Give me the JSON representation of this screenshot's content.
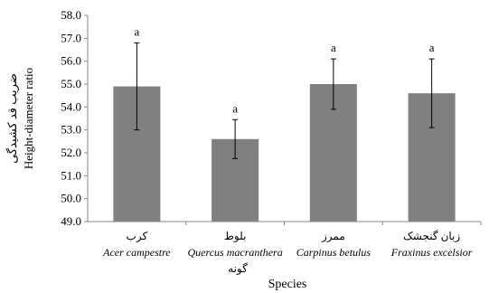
{
  "chart_data": {
    "type": "bar",
    "xlabel": "Species",
    "extra_label": "گونه",
    "ylabel_fa": "ضریب قد کشیدگی",
    "ylabel_en": "Height-diameter  ratio",
    "ylim": [
      49.0,
      58.0
    ],
    "y_ticks": [
      "49.0",
      "50.0",
      "51.0",
      "52.0",
      "53.0",
      "54.0",
      "55.0",
      "56.0",
      "57.0",
      "58.0"
    ],
    "categories": [
      {
        "fa": "کرب",
        "sci": "Acer campestre"
      },
      {
        "fa": "بلوط",
        "sci": "Quercus macranthera"
      },
      {
        "fa": "ممرز",
        "sci": "Carpinus betulus"
      },
      {
        "fa": "زبان گنجشک",
        "sci": "Fraxinus excelsior"
      }
    ],
    "values": [
      54.9,
      52.6,
      55.0,
      54.6
    ],
    "error": [
      1.9,
      0.85,
      1.1,
      1.5
    ],
    "significance": [
      "a",
      "a",
      "a",
      "a"
    ],
    "bar_color": "#808080",
    "grid": false,
    "legend": "none"
  }
}
